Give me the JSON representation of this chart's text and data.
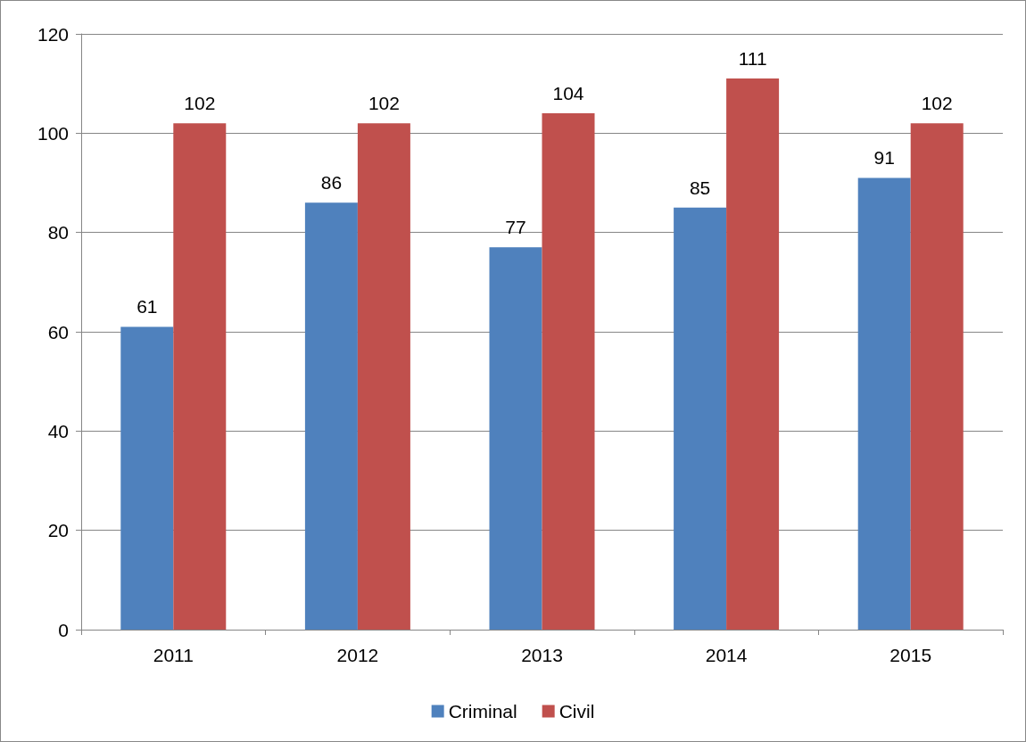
{
  "chart_data": {
    "type": "bar",
    "categories": [
      "2011",
      "2012",
      "2013",
      "2014",
      "2015"
    ],
    "series": [
      {
        "name": "Criminal",
        "color": "#4f81bd",
        "values": [
          61,
          86,
          77,
          85,
          91
        ]
      },
      {
        "name": "Civil",
        "color": "#c0504d",
        "values": [
          102,
          102,
          104,
          111,
          102
        ]
      }
    ],
    "ylim": [
      0,
      120
    ],
    "yticks": [
      0,
      20,
      40,
      60,
      80,
      100,
      120
    ],
    "grid": "y",
    "legend": "bottom",
    "data_labels": true
  }
}
